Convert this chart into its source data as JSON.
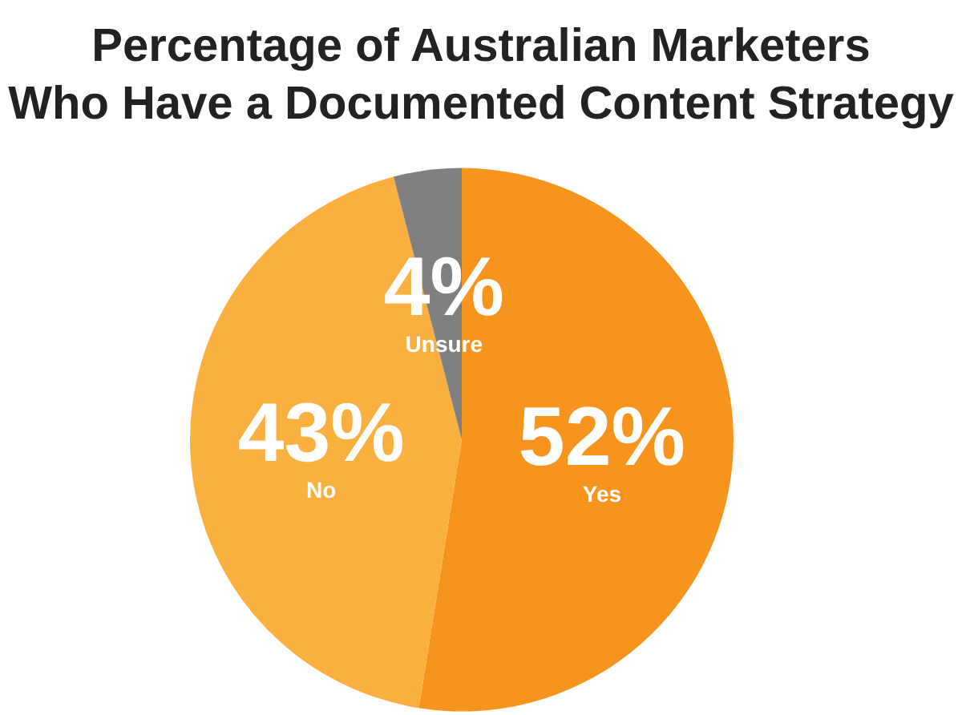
{
  "chart_data": {
    "type": "pie",
    "title": "Percentage of Australian Marketers\nWho Have a Documented Content Strategy",
    "categories": [
      "Yes",
      "No",
      "Unsure"
    ],
    "values": [
      52,
      43,
      4
    ],
    "value_labels": [
      "52%",
      "43%",
      "4%"
    ],
    "colors": [
      "#f7941e",
      "#f9b03f",
      "#808080"
    ],
    "legend": false
  }
}
